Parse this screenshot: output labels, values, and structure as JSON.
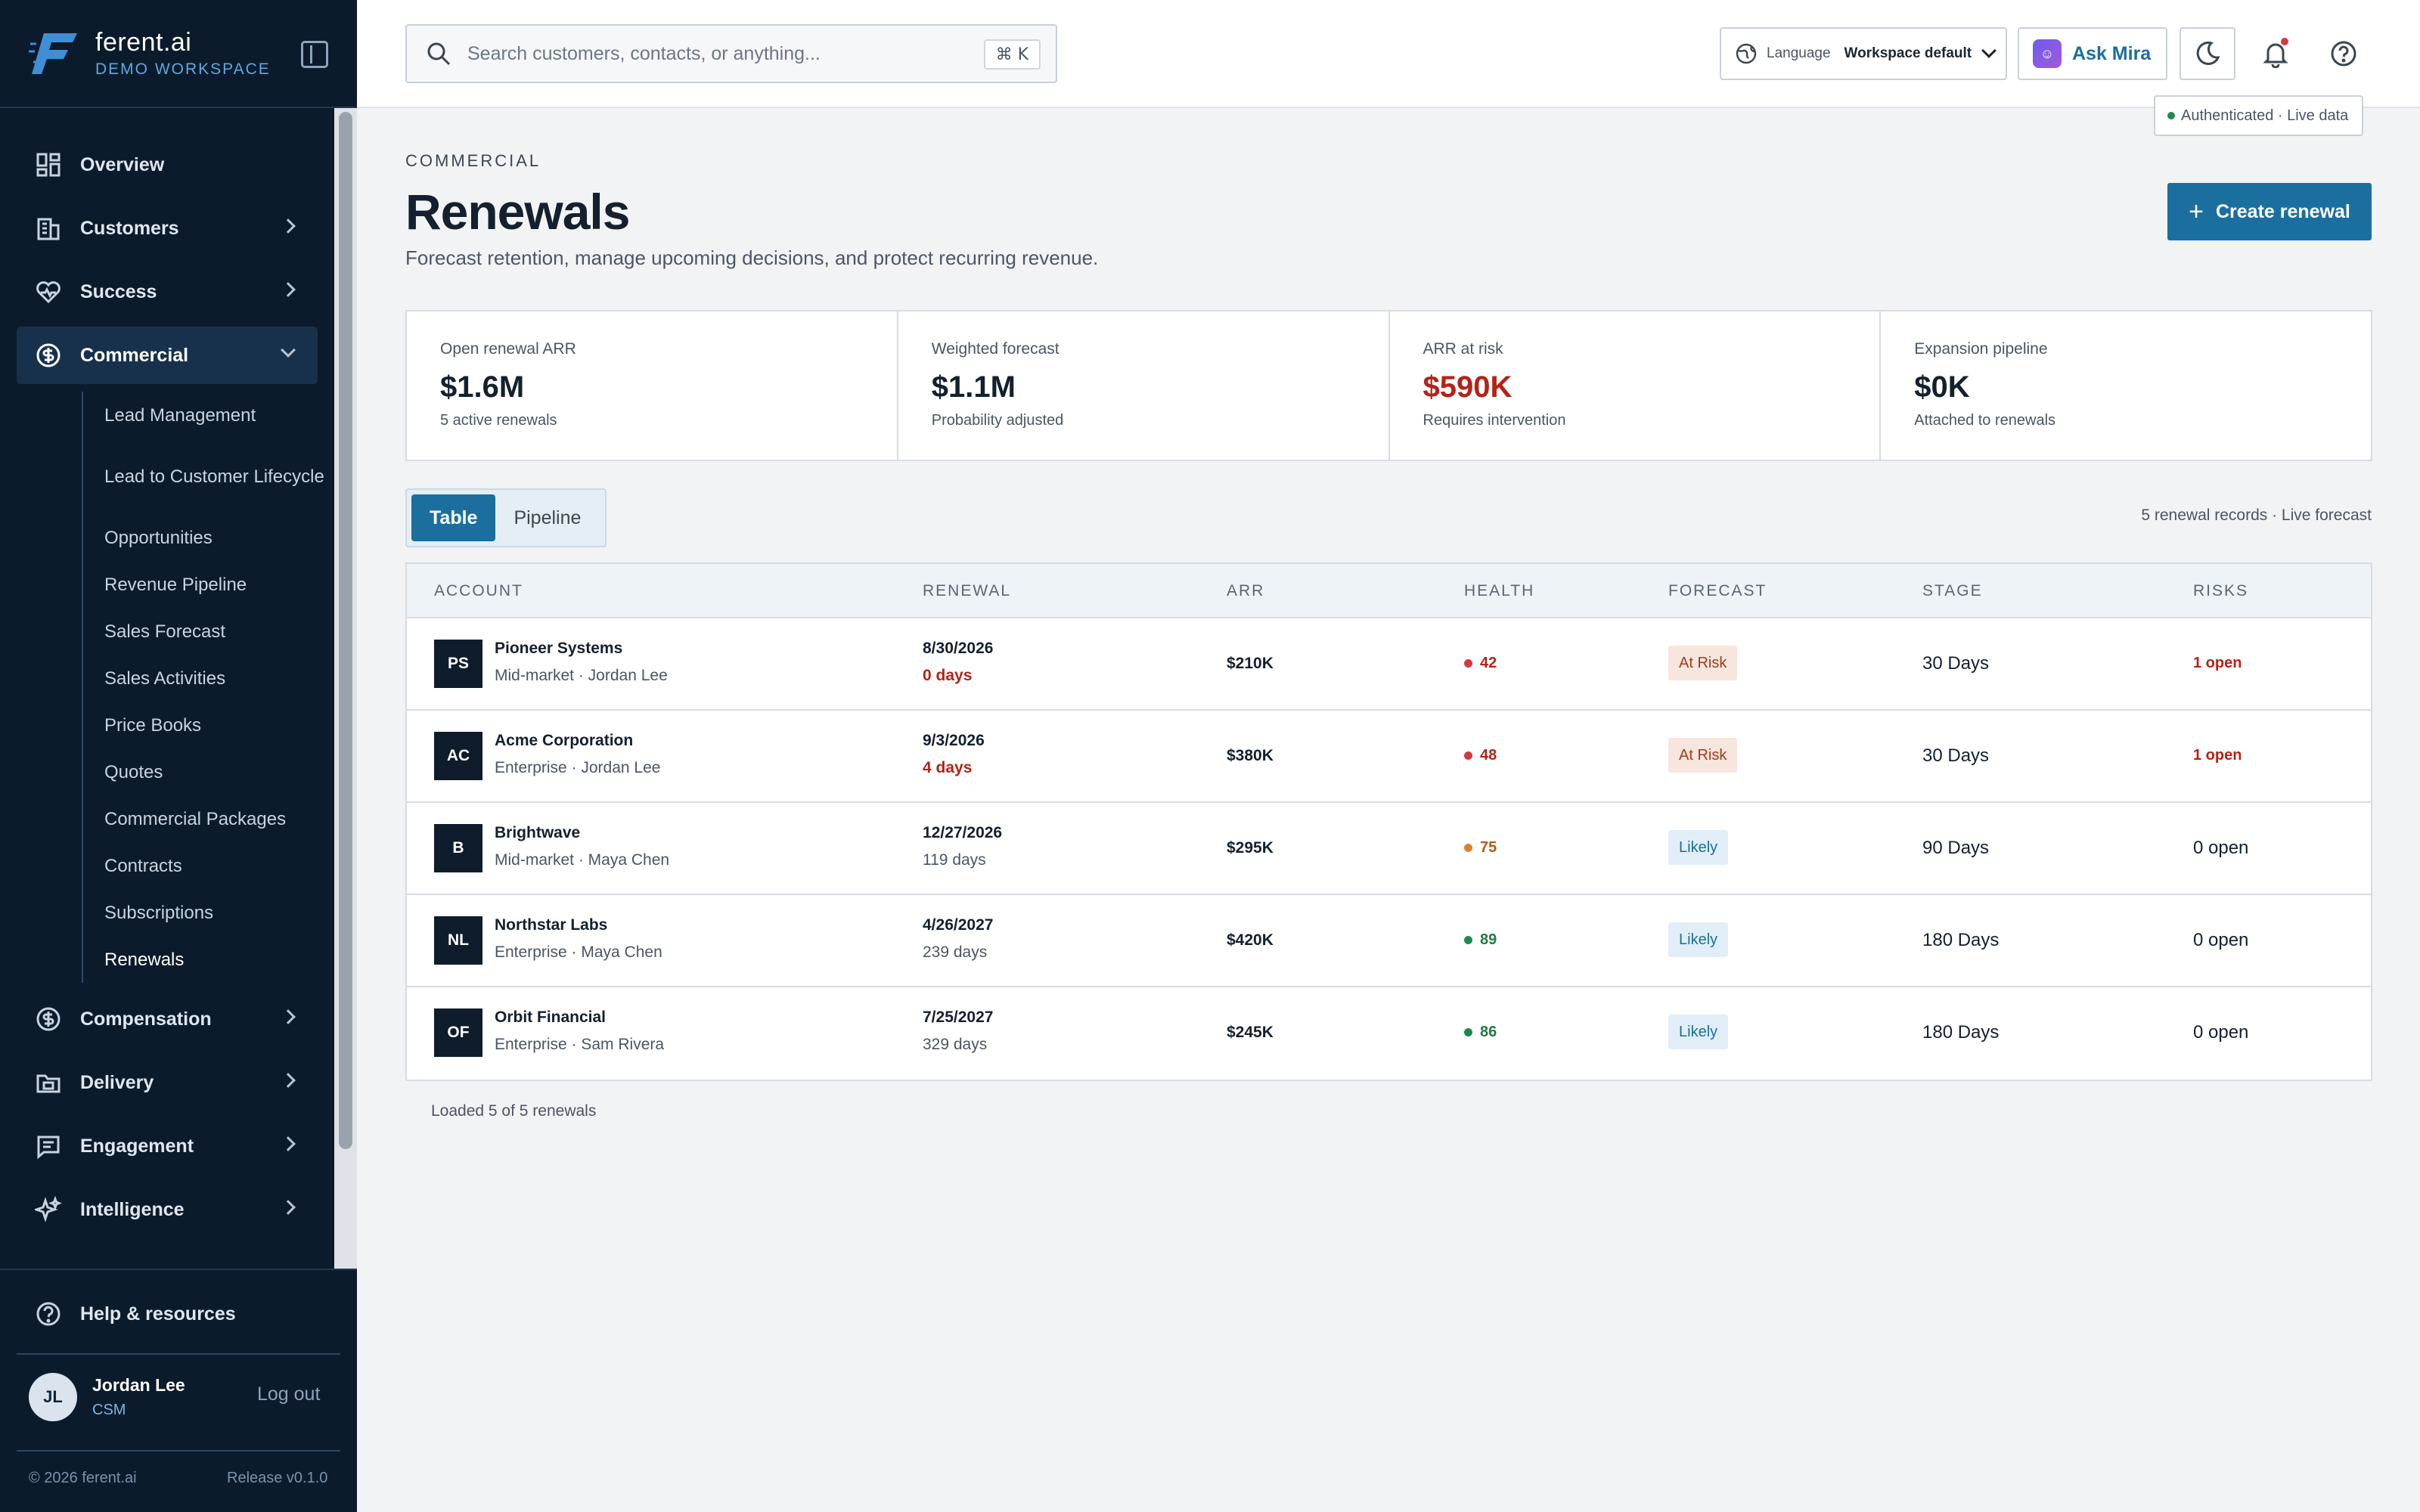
{
  "brand": {
    "name": "ferent.ai",
    "workspace": "DEMO WORKSPACE"
  },
  "sidebar": {
    "items": [
      {
        "label": "Overview",
        "icon": "grid-icon"
      },
      {
        "label": "Customers",
        "icon": "building-icon"
      },
      {
        "label": "Success",
        "icon": "heart-pulse-icon"
      },
      {
        "label": "Commercial",
        "icon": "dollar-circle-icon",
        "expanded": true
      },
      {
        "label": "Compensation",
        "icon": "dollar-circle-icon"
      },
      {
        "label": "Delivery",
        "icon": "folder-icon"
      },
      {
        "label": "Engagement",
        "icon": "message-icon"
      },
      {
        "label": "Intelligence",
        "icon": "sparkles-icon"
      }
    ],
    "commercial_sub": [
      "Lead Management",
      "Lead to Customer Lifecycle",
      "Opportunities",
      "Revenue Pipeline",
      "Sales Forecast",
      "Sales Activities",
      "Price Books",
      "Quotes",
      "Commercial Packages",
      "Contracts",
      "Subscriptions",
      "Renewals"
    ],
    "help_label": "Help & resources",
    "user": {
      "initials": "JL",
      "name": "Jordan Lee",
      "role": "CSM"
    },
    "logout_label": "Log out",
    "copyright": "© 2026 ferent.ai",
    "release": "Release v0.1.0"
  },
  "topbar": {
    "search_placeholder": "Search customers, contacts, or anything...",
    "shortcut": "⌘ K",
    "language_label": "Language",
    "language_value": "Workspace default",
    "ask_label": "Ask Mira",
    "auth_status": "Authenticated · Live data"
  },
  "header": {
    "eyebrow": "COMMERCIAL",
    "title": "Renewals",
    "subtitle": "Forecast retention, manage upcoming decisions, and protect recurring revenue.",
    "create_label": "Create renewal"
  },
  "kpis": [
    {
      "label": "Open renewal ARR",
      "value": "$1.6M",
      "note": "5 active renewals"
    },
    {
      "label": "Weighted forecast",
      "value": "$1.1M",
      "note": "Probability adjusted"
    },
    {
      "label": "ARR at risk",
      "value": "$590K",
      "note": "Requires intervention"
    },
    {
      "label": "Expansion pipeline",
      "value": "$0K",
      "note": "Attached to renewals"
    }
  ],
  "view_toggle": {
    "table": "Table",
    "pipeline": "Pipeline"
  },
  "records_note": "5 renewal records · Live forecast",
  "table": {
    "headers": [
      "ACCOUNT",
      "RENEWAL",
      "ARR",
      "HEALTH",
      "FORECAST",
      "STAGE",
      "RISKS"
    ],
    "rows": [
      {
        "initials": "PS",
        "name": "Pioneer Systems",
        "sub": "Mid-market · Jordan Lee",
        "date": "8/30/2026",
        "days": "0 days",
        "arr": "$210K",
        "health": "42",
        "forecast": "At Risk",
        "stage": "30 Days",
        "risks": "1 open"
      },
      {
        "initials": "AC",
        "name": "Acme Corporation",
        "sub": "Enterprise · Jordan Lee",
        "date": "9/3/2026",
        "days": "4 days",
        "arr": "$380K",
        "health": "48",
        "forecast": "At Risk",
        "stage": "30 Days",
        "risks": "1 open"
      },
      {
        "initials": "B",
        "name": "Brightwave",
        "sub": "Mid-market · Maya Chen",
        "date": "12/27/2026",
        "days": "119 days",
        "arr": "$295K",
        "health": "75",
        "forecast": "Likely",
        "stage": "90 Days",
        "risks": "0 open"
      },
      {
        "initials": "NL",
        "name": "Northstar Labs",
        "sub": "Enterprise · Maya Chen",
        "date": "4/26/2027",
        "days": "239 days",
        "arr": "$420K",
        "health": "89",
        "forecast": "Likely",
        "stage": "180 Days",
        "risks": "0 open"
      },
      {
        "initials": "OF",
        "name": "Orbit Financial",
        "sub": "Enterprise · Sam Rivera",
        "date": "7/25/2027",
        "days": "329 days",
        "arr": "$245K",
        "health": "86",
        "forecast": "Likely",
        "stage": "180 Days",
        "risks": "0 open"
      }
    ]
  },
  "footer_note": "Loaded 5 of 5 renewals",
  "colors": {
    "brand": "#1a6f9e",
    "sidebar": "#0c1b2c",
    "risk": "#b42318",
    "health_low": "#d23b3b",
    "health_mid": "#d9822b",
    "health_high": "#1f8a4c"
  }
}
